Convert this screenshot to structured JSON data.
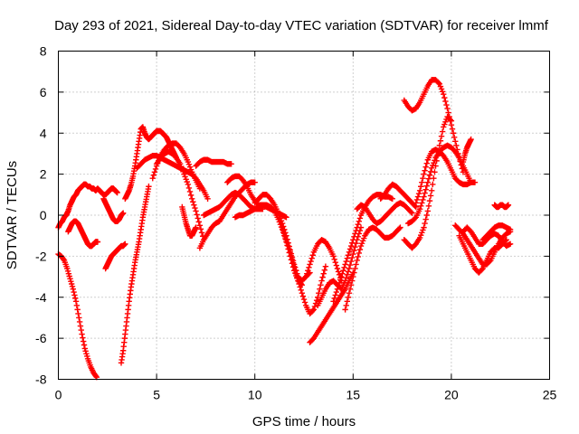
{
  "chart_data": {
    "type": "scatter",
    "title": "Day 293 of 2021, Sidereal Day-to-day VTEC variation (SDTVAR) for receiver lmmf",
    "xlabel": "GPS time / hours",
    "ylabel": "SDTVAR / TECUs",
    "xlim": [
      0,
      25
    ],
    "ylim": [
      -8,
      8
    ],
    "x_ticks": [
      0,
      5,
      10,
      15,
      20,
      25
    ],
    "y_ticks": [
      -8,
      -6,
      -4,
      -2,
      0,
      2,
      4,
      6,
      8
    ],
    "x_tick_labels": [
      "0",
      "5",
      "10",
      "15",
      "20",
      "25"
    ],
    "y_tick_labels": [
      "-8",
      "-6",
      "-4",
      "-2",
      "0",
      "2",
      "4",
      "6",
      "8"
    ],
    "grid": true,
    "marker": "+",
    "colors": {
      "series": "#ff0000",
      "grid": "#a0a0a0",
      "axis": "#000000"
    },
    "series": [
      {
        "x": [
          0.0,
          0.15,
          0.3,
          0.45,
          0.6,
          0.75,
          0.9,
          1.05,
          1.2,
          1.35,
          1.5,
          1.65,
          1.8,
          1.95
        ],
        "y": [
          -1.9,
          -2.0,
          -2.2,
          -2.6,
          -3.1,
          -3.6,
          -4.2,
          -5.0,
          -5.8,
          -6.5,
          -7.0,
          -7.4,
          -7.7,
          -7.9
        ]
      },
      {
        "x": [
          0.0,
          0.1,
          0.2,
          0.3,
          0.4,
          0.5,
          0.6,
          0.7,
          0.8,
          0.9,
          1.0,
          1.1,
          1.2,
          1.3,
          1.4,
          1.5,
          1.6,
          1.7,
          1.8,
          1.9,
          2.0,
          2.1,
          2.2,
          2.3,
          2.4,
          2.5,
          2.6,
          2.7,
          2.8,
          2.9,
          3.0
        ],
        "y": [
          -0.6,
          -0.4,
          -0.3,
          -0.1,
          0.0,
          0.2,
          0.5,
          0.7,
          0.9,
          1.0,
          1.2,
          1.3,
          1.4,
          1.5,
          1.5,
          1.4,
          1.4,
          1.3,
          1.3,
          1.2,
          1.3,
          1.2,
          1.1,
          1.0,
          1.0,
          1.1,
          1.2,
          1.3,
          1.3,
          1.2,
          1.1
        ]
      },
      {
        "x": [
          0.5,
          0.6,
          0.7,
          0.8,
          0.9,
          1.0,
          1.1,
          1.2,
          1.3,
          1.4,
          1.5,
          1.6,
          1.7,
          1.8,
          1.9,
          2.0
        ],
        "y": [
          -0.8,
          -0.6,
          -0.4,
          -0.3,
          -0.3,
          -0.4,
          -0.6,
          -0.8,
          -1.0,
          -1.2,
          -1.4,
          -1.5,
          -1.5,
          -1.4,
          -1.3,
          -1.3
        ]
      },
      {
        "x": [
          2.4,
          2.5,
          2.6,
          2.7,
          2.8,
          2.9,
          3.0,
          3.1,
          3.2,
          3.3,
          3.4
        ],
        "y": [
          -2.6,
          -2.4,
          -2.2,
          -2.0,
          -1.9,
          -1.8,
          -1.7,
          -1.6,
          -1.5,
          -1.5,
          -1.4
        ]
      },
      {
        "x": [
          2.3,
          2.4,
          2.5,
          2.6,
          2.7,
          2.8,
          2.9,
          3.0,
          3.1,
          3.2,
          3.3
        ],
        "y": [
          0.8,
          0.6,
          0.4,
          0.2,
          0.0,
          -0.2,
          -0.3,
          -0.3,
          -0.2,
          0.0,
          0.1
        ]
      },
      {
        "x": [
          3.2,
          3.3,
          3.4,
          3.5,
          3.6,
          3.7,
          3.8,
          3.9,
          4.0,
          4.1,
          4.2,
          4.3,
          4.4,
          4.5,
          4.6
        ],
        "y": [
          -7.2,
          -6.6,
          -5.8,
          -5.0,
          -4.2,
          -3.5,
          -2.9,
          -2.3,
          -1.8,
          -1.3,
          -0.7,
          -0.1,
          0.4,
          0.9,
          1.4
        ]
      },
      {
        "x": [
          3.4,
          3.5,
          3.6,
          3.7,
          3.8,
          3.9,
          4.0,
          4.1,
          4.2,
          4.3,
          4.4,
          4.5,
          4.6,
          4.7,
          4.8,
          4.9,
          5.0,
          5.1,
          5.2,
          5.3,
          5.4,
          5.5,
          5.6,
          5.7,
          5.8,
          5.9,
          6.0
        ],
        "y": [
          0.8,
          1.0,
          1.2,
          1.5,
          1.9,
          2.4,
          3.0,
          3.6,
          4.2,
          4.3,
          4.0,
          3.8,
          3.7,
          3.8,
          3.9,
          4.0,
          4.1,
          4.1,
          4.1,
          4.0,
          3.9,
          3.8,
          3.6,
          3.4,
          3.2,
          3.0,
          2.8
        ]
      },
      {
        "x": [
          4.0,
          4.2,
          4.4,
          4.6,
          4.8,
          5.0,
          5.2,
          5.4,
          5.6,
          5.8,
          6.0,
          6.2,
          6.4,
          6.6,
          6.8,
          7.0,
          7.2,
          7.4,
          7.6
        ],
        "y": [
          2.3,
          2.5,
          2.7,
          2.8,
          2.9,
          2.9,
          2.8,
          2.7,
          2.6,
          2.5,
          2.4,
          2.3,
          2.2,
          2.1,
          2.0,
          1.8,
          1.5,
          1.2,
          0.8
        ]
      },
      {
        "x": [
          4.8,
          5.0,
          5.2,
          5.4,
          5.6,
          5.8,
          6.0,
          6.2,
          6.4,
          6.6,
          6.8,
          7.0,
          7.2
        ],
        "y": [
          1.8,
          2.4,
          2.9,
          3.2,
          3.4,
          3.5,
          3.5,
          3.3,
          3.0,
          2.6,
          2.1,
          1.7,
          1.3
        ]
      },
      {
        "x": [
          5.0,
          5.2,
          5.4,
          5.6,
          5.8,
          6.0,
          6.2,
          6.4,
          6.6,
          6.8,
          7.0,
          7.2,
          7.4
        ],
        "y": [
          2.5,
          2.8,
          3.0,
          3.1,
          3.0,
          2.8,
          2.5,
          2.0,
          1.5,
          0.8,
          0.2,
          -0.5,
          -1.2
        ]
      },
      {
        "x": [
          6.3,
          6.4,
          6.5,
          6.6,
          6.7,
          6.8,
          6.9,
          7.0
        ],
        "y": [
          0.4,
          0.0,
          -0.4,
          -0.7,
          -1.0,
          -1.0,
          -0.8,
          -0.6
        ]
      },
      {
        "x": [
          7.0,
          7.2,
          7.4,
          7.6,
          7.8,
          8.0,
          8.2,
          8.4,
          8.6,
          8.8
        ],
        "y": [
          2.4,
          2.6,
          2.7,
          2.7,
          2.6,
          2.6,
          2.6,
          2.6,
          2.5,
          2.5
        ]
      },
      {
        "x": [
          7.2,
          7.4,
          7.6,
          7.8,
          8.0,
          8.2,
          8.4,
          8.6,
          8.8,
          9.0,
          9.2,
          9.4,
          9.6,
          9.8,
          10.0
        ],
        "y": [
          -1.6,
          -1.2,
          -0.9,
          -0.6,
          -0.4,
          -0.3,
          0.0,
          0.3,
          0.6,
          0.9,
          1.1,
          1.3,
          1.5,
          1.6,
          1.6
        ]
      },
      {
        "x": [
          7.4,
          7.6,
          7.8,
          8.0,
          8.2,
          8.4,
          8.6,
          8.8,
          9.0,
          9.2,
          9.4,
          9.6,
          9.8,
          10.0,
          10.2,
          10.4
        ],
        "y": [
          0.0,
          0.1,
          0.2,
          0.3,
          0.4,
          0.6,
          0.8,
          1.0,
          1.1,
          1.0,
          0.8,
          0.6,
          0.4,
          0.3,
          0.3,
          0.3
        ]
      },
      {
        "x": [
          8.6,
          8.8,
          9.0,
          9.2,
          9.4,
          9.6,
          9.8,
          10.0,
          10.2,
          10.4,
          10.6,
          10.8,
          11.0,
          11.2,
          11.4,
          11.6
        ],
        "y": [
          1.6,
          1.8,
          1.9,
          1.9,
          1.7,
          1.4,
          1.0,
          0.7,
          0.5,
          0.5,
          0.4,
          0.3,
          0.2,
          0.1,
          0.0,
          -0.1
        ]
      },
      {
        "x": [
          9.0,
          9.2,
          9.4,
          9.6,
          9.8,
          10.0,
          10.2,
          10.4,
          10.6,
          10.8,
          11.0,
          11.2,
          11.4,
          11.6,
          11.8,
          12.0,
          12.2,
          12.4
        ],
        "y": [
          -0.1,
          0.0,
          0.0,
          0.1,
          0.2,
          0.3,
          0.4,
          0.5,
          0.5,
          0.4,
          0.2,
          -0.2,
          -0.7,
          -1.3,
          -2.0,
          -2.7,
          -3.2,
          -3.4
        ]
      },
      {
        "x": [
          10.0,
          10.2,
          10.4,
          10.6,
          10.8,
          11.0,
          11.2,
          11.4,
          11.6,
          11.8,
          12.0,
          12.2,
          12.4,
          12.6,
          12.8
        ],
        "y": [
          0.6,
          0.8,
          1.0,
          1.0,
          0.8,
          0.5,
          0.1,
          -0.4,
          -1.0,
          -1.7,
          -2.4,
          -3.0,
          -3.2,
          -3.0,
          -2.8
        ]
      },
      {
        "x": [
          11.4,
          11.6,
          11.8,
          12.0,
          12.2,
          12.4,
          12.6,
          12.8,
          13.0,
          13.2,
          13.4,
          13.6
        ],
        "y": [
          -0.6,
          -1.2,
          -1.8,
          -2.5,
          -3.2,
          -3.8,
          -4.4,
          -4.8,
          -4.6,
          -4.0,
          -3.2,
          -2.5
        ]
      },
      {
        "x": [
          12.6,
          12.8,
          13.0,
          13.2,
          13.4,
          13.6,
          13.8,
          14.0,
          14.2,
          14.4
        ],
        "y": [
          -3.0,
          -2.4,
          -1.8,
          -1.4,
          -1.2,
          -1.3,
          -1.6,
          -2.0,
          -2.6,
          -3.2
        ]
      },
      {
        "x": [
          12.8,
          13.0,
          13.2,
          13.4,
          13.6,
          13.8,
          14.0,
          14.2,
          14.4,
          14.6,
          14.8,
          15.0
        ],
        "y": [
          -6.2,
          -6.0,
          -5.7,
          -5.4,
          -5.1,
          -4.8,
          -4.5,
          -4.2,
          -3.9,
          -3.6,
          -3.2,
          -2.8
        ]
      },
      {
        "x": [
          13.2,
          13.4,
          13.6,
          13.8,
          14.0,
          14.2,
          14.4,
          14.6,
          14.8,
          15.0,
          15.2,
          15.4
        ],
        "y": [
          -4.4,
          -4.0,
          -3.6,
          -3.3,
          -3.2,
          -3.4,
          -3.6,
          -3.2,
          -2.6,
          -1.9,
          -1.2,
          -0.6
        ]
      },
      {
        "x": [
          14.0,
          14.2,
          14.4,
          14.6,
          14.8,
          15.0,
          15.2,
          15.4,
          15.6,
          15.8,
          16.0,
          16.2,
          16.4,
          16.6,
          16.8,
          17.0
        ],
        "y": [
          -4.2,
          -3.6,
          -3.0,
          -2.4,
          -1.8,
          -1.2,
          -0.6,
          0.0,
          0.4,
          0.7,
          0.9,
          1.0,
          1.0,
          0.9,
          0.9,
          0.8
        ]
      },
      {
        "x": [
          14.6,
          14.8,
          15.0,
          15.2,
          15.4,
          15.6,
          15.8,
          16.0,
          16.2,
          16.4,
          16.6,
          16.8,
          17.0,
          17.2,
          17.4
        ],
        "y": [
          -4.6,
          -3.8,
          -3.0,
          -2.2,
          -1.5,
          -1.0,
          -0.7,
          -0.6,
          -0.7,
          -0.9,
          -1.1,
          -1.1,
          -1.0,
          -0.8,
          -0.6
        ]
      },
      {
        "x": [
          15.2,
          15.4,
          15.6,
          15.8,
          16.0,
          16.2,
          16.4,
          16.6,
          16.8,
          17.0,
          17.2,
          17.4,
          17.6,
          17.8,
          18.0
        ],
        "y": [
          0.3,
          0.5,
          0.4,
          0.1,
          -0.2,
          -0.4,
          -0.3,
          -0.1,
          0.1,
          0.3,
          0.5,
          0.6,
          0.5,
          0.3,
          0.1
        ]
      },
      {
        "x": [
          16.4,
          16.6,
          16.8,
          17.0,
          17.2,
          17.4,
          17.6,
          17.8,
          18.0,
          18.2
        ],
        "y": [
          0.8,
          1.0,
          1.3,
          1.5,
          1.4,
          1.2,
          1.0,
          0.8,
          0.6,
          0.4
        ]
      },
      {
        "x": [
          17.6,
          17.8,
          18.0,
          18.2,
          18.4,
          18.6,
          18.8,
          19.0,
          19.2,
          19.4,
          19.6,
          19.8,
          20.0
        ],
        "y": [
          -1.2,
          -1.4,
          -1.6,
          -1.4,
          -1.1,
          -0.6,
          0.2,
          1.2,
          2.4,
          3.4,
          4.3,
          4.8,
          4.6
        ]
      },
      {
        "x": [
          17.8,
          18.0,
          18.2,
          18.4,
          18.6,
          18.8,
          19.0,
          19.2,
          19.4,
          19.6,
          19.8,
          20.0,
          20.2,
          20.4,
          20.6,
          20.8,
          21.0
        ],
        "y": [
          -0.4,
          -0.3,
          -0.1,
          0.3,
          0.9,
          1.6,
          2.3,
          2.8,
          3.1,
          3.3,
          3.4,
          3.3,
          3.1,
          2.8,
          2.4,
          2.0,
          1.6
        ]
      },
      {
        "x": [
          17.6,
          17.8,
          18.0,
          18.2,
          18.4,
          18.6,
          18.8,
          19.0,
          19.2,
          19.4,
          19.6,
          19.8,
          20.0,
          20.2,
          20.4,
          20.6
        ],
        "y": [
          5.6,
          5.3,
          5.1,
          5.2,
          5.5,
          5.9,
          6.3,
          6.6,
          6.6,
          6.4,
          5.9,
          5.2,
          4.4,
          3.6,
          2.8,
          2.1
        ]
      },
      {
        "x": [
          18.2,
          18.4,
          18.6,
          18.8,
          19.0,
          19.2,
          19.4,
          19.6,
          19.8,
          20.0,
          20.2,
          20.4,
          20.6,
          20.8,
          21.0,
          21.2
        ],
        "y": [
          0.6,
          1.2,
          2.0,
          2.7,
          3.1,
          3.2,
          3.1,
          2.9,
          2.6,
          2.2,
          1.8,
          1.6,
          1.5,
          1.5,
          1.6,
          1.6
        ]
      },
      {
        "x": [
          20.6,
          20.7,
          20.8,
          20.9,
          21.0
        ],
        "y": [
          2.6,
          3.0,
          3.3,
          3.5,
          3.7
        ]
      },
      {
        "x": [
          20.2,
          20.4,
          20.6,
          20.8,
          21.0,
          21.2,
          21.4,
          21.6,
          21.8,
          22.0,
          22.2,
          22.4,
          22.6,
          22.8,
          23.0
        ],
        "y": [
          -0.5,
          -0.7,
          -0.9,
          -1.2,
          -1.5,
          -1.8,
          -2.1,
          -2.4,
          -2.4,
          -2.2,
          -1.8,
          -1.4,
          -1.1,
          -0.9,
          -0.8
        ]
      },
      {
        "x": [
          20.4,
          20.6,
          20.8,
          21.0,
          21.2,
          21.4,
          21.6,
          21.8,
          22.0,
          22.2,
          22.4,
          22.6,
          22.8
        ],
        "y": [
          -1.0,
          -1.4,
          -1.8,
          -2.2,
          -2.6,
          -2.8,
          -2.6,
          -2.2,
          -1.8,
          -1.6,
          -1.6,
          -1.4,
          -1.2
        ]
      },
      {
        "x": [
          20.6,
          20.8,
          21.0,
          21.2,
          21.4,
          21.6,
          21.8,
          22.0,
          22.2,
          22.4,
          22.6,
          22.8,
          23.0
        ],
        "y": [
          -0.8,
          -0.6,
          -0.8,
          -1.1,
          -1.4,
          -1.4,
          -1.2,
          -1.0,
          -0.9,
          -1.0,
          -1.3,
          -1.5,
          -1.4
        ]
      },
      {
        "x": [
          21.6,
          21.8,
          22.0,
          22.2,
          22.4,
          22.6,
          22.8,
          23.0
        ],
        "y": [
          -1.2,
          -1.0,
          -0.8,
          -0.6,
          -0.5,
          -0.5,
          -0.6,
          -0.7
        ]
      },
      {
        "x": [
          22.2,
          22.3,
          22.4,
          22.5,
          22.6,
          22.7,
          22.8,
          22.9
        ],
        "y": [
          0.5,
          0.4,
          0.4,
          0.5,
          0.5,
          0.4,
          0.4,
          0.5
        ]
      }
    ]
  }
}
